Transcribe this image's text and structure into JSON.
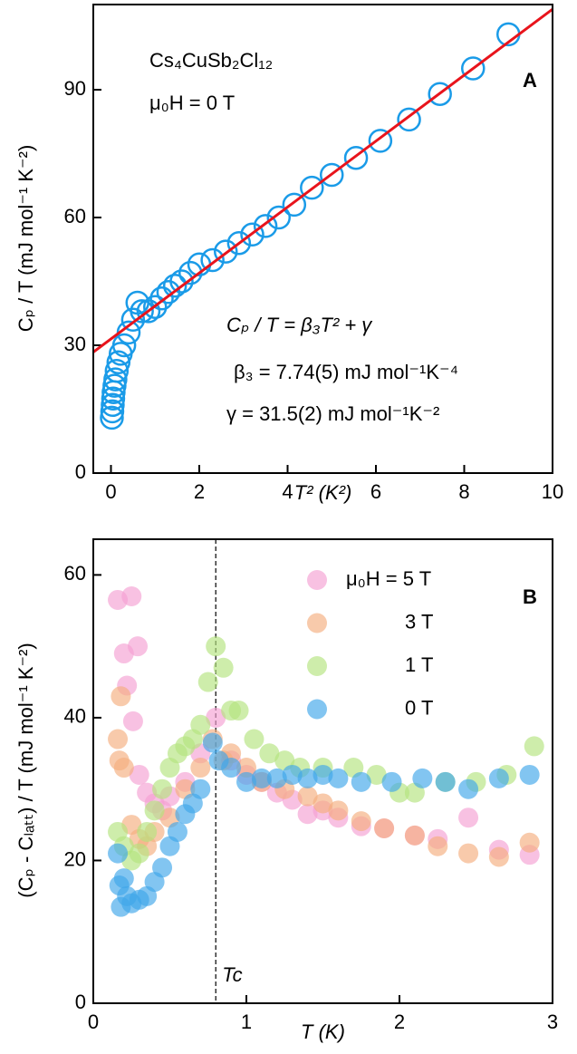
{
  "chart_data": [
    {
      "type": "scatter",
      "panel": "A",
      "x_label": "T² (K²)",
      "y_label": "Cₚ / T (mJ mol⁻¹ K⁻²)",
      "annotations": [
        "Cs₄CuSb₂Cl₁₂",
        "μ₀H = 0 T",
        "Cₚ / T = β₃T² + γ",
        "β₃ = 7.74(5) mJ mol⁻¹K⁻⁴",
        "γ = 31.5(2) mJ mol⁻¹K⁻²"
      ],
      "xlim": [
        -0.4,
        10
      ],
      "ylim": [
        0,
        110
      ],
      "xticks": [
        0,
        2,
        4,
        6,
        8,
        10
      ],
      "yticks": [
        0,
        30,
        60,
        90
      ],
      "series": [
        {
          "kind": "open-circle",
          "color": "#1a9be8",
          "x": [
            0.02,
            0.03,
            0.04,
            0.05,
            0.06,
            0.08,
            0.1,
            0.13,
            0.17,
            0.22,
            0.3,
            0.4,
            0.5,
            0.6,
            0.7,
            0.85,
            1.0,
            1.15,
            1.3,
            1.45,
            1.6,
            1.8,
            2.0,
            2.3,
            2.6,
            2.9,
            3.2,
            3.5,
            3.8,
            4.15,
            4.55,
            5.0,
            5.55,
            6.1,
            6.75,
            7.45,
            8.2,
            9.0
          ],
          "values": [
            13,
            14.5,
            16,
            17.5,
            19,
            20.5,
            22,
            24,
            26,
            28,
            30,
            33,
            36,
            40,
            38,
            38,
            39,
            41,
            42.5,
            44,
            45,
            47,
            49,
            50,
            52,
            54,
            56,
            58,
            60,
            63,
            67,
            70,
            74,
            78,
            83,
            89,
            95,
            103
          ]
        },
        {
          "kind": "line",
          "color": "#e8141c",
          "x": [
            -0.4,
            10
          ],
          "values": [
            28.4,
            108.9
          ]
        }
      ]
    },
    {
      "type": "scatter",
      "panel": "B",
      "x_label": "T (K)",
      "y_label": "(Cₚ - Cₗₐₜₜ) / T (mJ mol⁻¹ K⁻²)",
      "vline": {
        "x": 0.8,
        "label": "Tc"
      },
      "xlim": [
        0,
        3
      ],
      "ylim": [
        0,
        65
      ],
      "xticks": [
        0,
        1,
        2,
        3
      ],
      "yticks": [
        0,
        20,
        40,
        60
      ],
      "legend": "upper right",
      "series": [
        {
          "name": "μ₀H = 5 T",
          "kind": "filled-circle",
          "color": "#f59fd2",
          "x": [
            0.16,
            0.2,
            0.22,
            0.25,
            0.26,
            0.29,
            0.3,
            0.35,
            0.4,
            0.45,
            0.5,
            0.6,
            0.7,
            0.8,
            0.9,
            1.0,
            1.1,
            1.2,
            1.3,
            1.4,
            1.5,
            1.6,
            1.75,
            1.9,
            2.1,
            2.25,
            2.45,
            2.65,
            2.85
          ],
          "values": [
            56.5,
            49,
            44.5,
            57,
            39.5,
            50,
            32,
            29.5,
            28,
            27,
            29,
            31,
            35,
            40,
            34,
            32,
            31,
            29.5,
            28.5,
            26.5,
            27,
            26,
            24.8,
            24.5,
            23.5,
            23,
            26,
            21.5,
            20.8
          ]
        },
        {
          "name": "3 T",
          "kind": "filled-circle",
          "color": "#f5ad7e",
          "x": [
            0.16,
            0.17,
            0.18,
            0.2,
            0.25,
            0.3,
            0.35,
            0.4,
            0.5,
            0.6,
            0.7,
            0.78,
            0.85,
            0.9,
            1.0,
            1.1,
            1.25,
            1.4,
            1.5,
            1.6,
            1.75,
            1.9,
            2.1,
            2.25,
            2.45,
            2.65,
            2.85
          ],
          "values": [
            37,
            34,
            43,
            33,
            25,
            23,
            22,
            24,
            26,
            30,
            33,
            37,
            34,
            35,
            33,
            31,
            30,
            29,
            28,
            27,
            25.5,
            24.5,
            23.5,
            22,
            21,
            20.5,
            22.5
          ]
        },
        {
          "name": "1 T",
          "kind": "filled-circle",
          "color": "#b3e47e",
          "x": [
            0.16,
            0.2,
            0.25,
            0.3,
            0.35,
            0.4,
            0.45,
            0.5,
            0.55,
            0.6,
            0.65,
            0.7,
            0.75,
            0.8,
            0.85,
            0.9,
            0.95,
            1.05,
            1.15,
            1.25,
            1.35,
            1.5,
            1.7,
            1.85,
            2.0,
            2.1,
            2.3,
            2.5,
            2.7,
            2.88
          ],
          "values": [
            24,
            22,
            20,
            21,
            24,
            27,
            30,
            33,
            35,
            36,
            37,
            39,
            45,
            50,
            47,
            41,
            41,
            37,
            35,
            34,
            33,
            33,
            33,
            32,
            29.5,
            29.5,
            31,
            31,
            32,
            36
          ]
        },
        {
          "name": "0 T",
          "kind": "filled-circle",
          "color": "#3fa6ea",
          "x": [
            0.16,
            0.17,
            0.18,
            0.2,
            0.22,
            0.25,
            0.3,
            0.35,
            0.4,
            0.45,
            0.5,
            0.55,
            0.6,
            0.65,
            0.7,
            0.78,
            0.82,
            0.9,
            1.0,
            1.1,
            1.2,
            1.3,
            1.4,
            1.5,
            1.6,
            1.75,
            1.95,
            2.15,
            2.3,
            2.45,
            2.65,
            2.85
          ],
          "values": [
            21,
            16.5,
            13.5,
            17.5,
            15,
            14,
            14.5,
            15,
            17,
            19,
            22,
            24,
            26.5,
            28,
            30,
            36.5,
            34,
            33,
            31,
            31.5,
            31.5,
            32,
            31.5,
            32,
            31.5,
            31,
            31,
            31.5,
            31,
            30,
            31.5,
            32
          ]
        }
      ]
    }
  ]
}
